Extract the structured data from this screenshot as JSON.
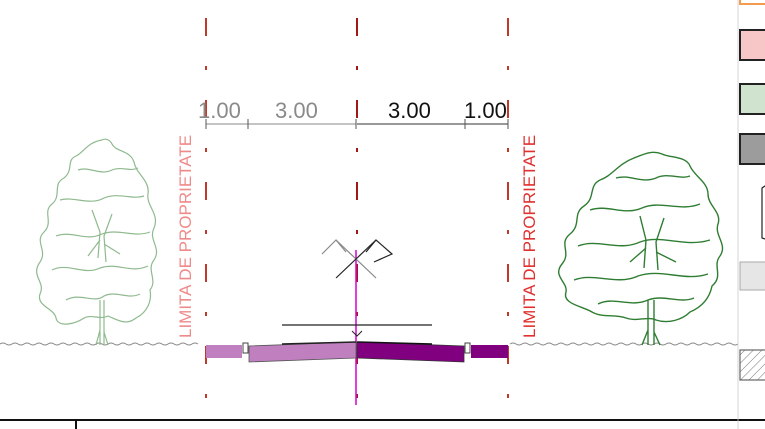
{
  "dimensions": {
    "left_sidewalk": "1.00",
    "left_lane": "3.00",
    "right_lane": "3.00",
    "right_sidewalk": "1.00"
  },
  "property_limit_label": "LIMITA DE PROPRIETATE",
  "colors": {
    "property_line": "#c0392b",
    "property_text": "#ef8a8a",
    "axis": "#d400d4",
    "road_left": "#c080c0",
    "road_right": "#800080",
    "tree_left": "#8fba8f",
    "tree_right": "#2f7d32",
    "dim_left": "#8a8a8a",
    "dim_right": "#111111"
  },
  "legend_swatches": [
    {
      "icon": "orange-swatch",
      "fill": "#ffffff",
      "stroke": "#f39c50"
    },
    {
      "icon": "pink-swatch",
      "fill": "#f7c6c6",
      "stroke": "#222222"
    },
    {
      "icon": "green-swatch",
      "fill": "#cfe3cf",
      "stroke": "#222222"
    },
    {
      "icon": "gray-swatch",
      "fill": "#9c9c9c",
      "stroke": "#222222"
    },
    {
      "icon": "light-gray-swatch",
      "fill": "#e6e6e6",
      "stroke": "#aaaaaa"
    },
    {
      "icon": "hatched-swatch",
      "fill": "#ffffff",
      "stroke": "#666666"
    }
  ]
}
